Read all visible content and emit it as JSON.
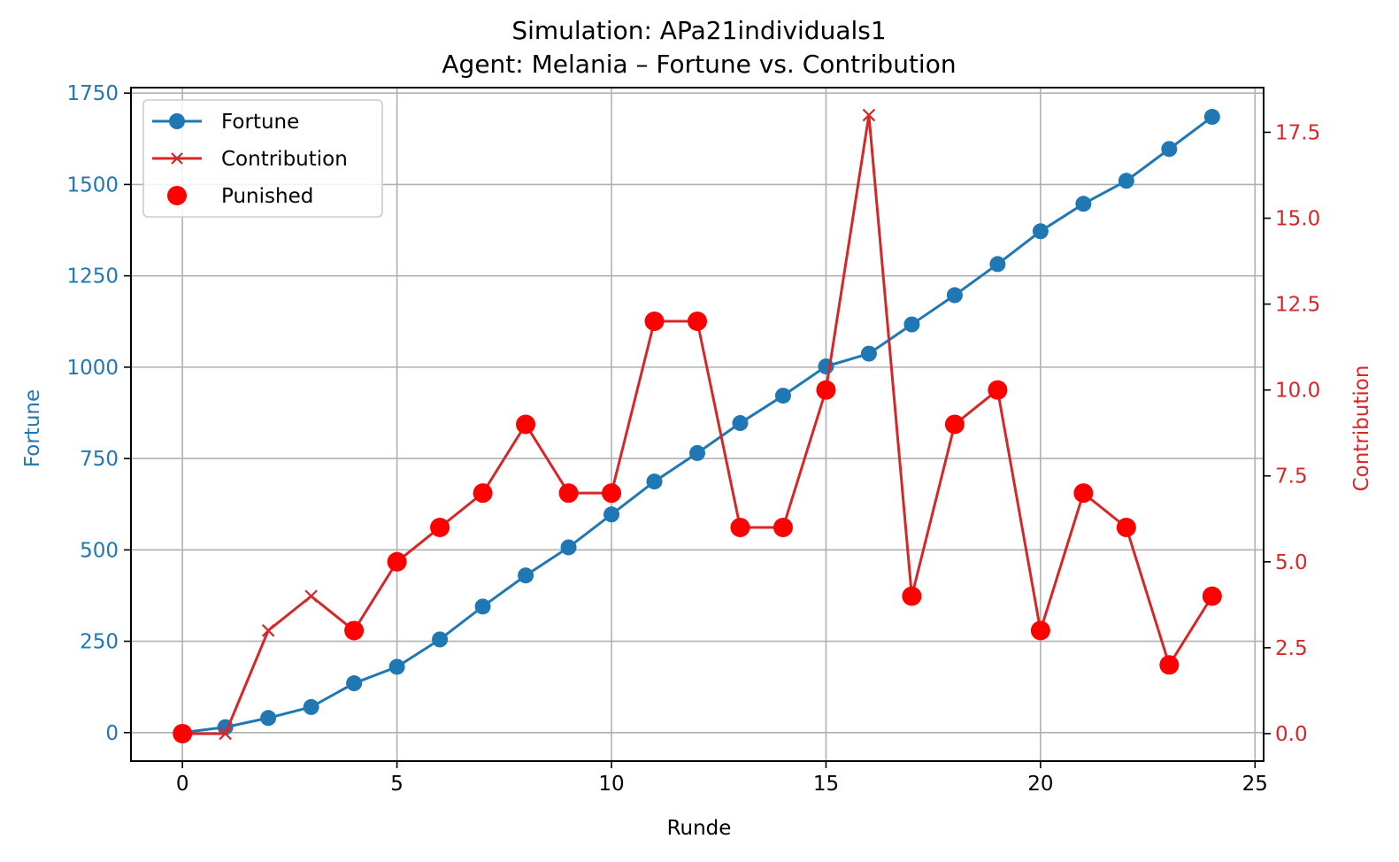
{
  "chart_data": {
    "type": "line",
    "title": "Simulation: APa21individuals1",
    "subtitle": "Agent: Melania – Fortune vs. Contribution",
    "xlabel": "Runde",
    "ylabel_left": "Fortune",
    "ylabel_right": "Contribution",
    "xlim": [
      -1.2,
      25.2
    ],
    "ylim_left": [
      -78,
      1765
    ],
    "ylim_right": [
      -0.8,
      18.8
    ],
    "x_ticks": [
      0,
      5,
      10,
      15,
      20,
      25
    ],
    "y_left_ticks": [
      0,
      250,
      500,
      750,
      1000,
      1250,
      1500,
      1750
    ],
    "y_right_ticks": [
      0.0,
      2.5,
      5.0,
      7.5,
      10.0,
      12.5,
      15.0,
      17.5
    ],
    "y_right_tick_labels": [
      "0.0",
      "2.5",
      "5.0",
      "7.5",
      "10.0",
      "12.5",
      "15.0",
      "17.5"
    ],
    "grid": true,
    "legend_position": "top-left",
    "legend": [
      "Fortune",
      "Contribution",
      "Punished"
    ],
    "colors": {
      "fortune": "#1f77b4",
      "contribution": "#d62728",
      "punished": "#ff0000"
    },
    "x": [
      0,
      1,
      2,
      3,
      4,
      5,
      6,
      7,
      8,
      9,
      10,
      11,
      12,
      13,
      14,
      15,
      16,
      17,
      18,
      19,
      20,
      21,
      22,
      23,
      24
    ],
    "series": [
      {
        "name": "Fortune",
        "axis": "left",
        "values": [
          0,
          15,
          40,
          70,
          135,
          180,
          255,
          345,
          430,
          507,
          597,
          687,
          765,
          847,
          922,
          1002,
          1037,
          1117,
          1197,
          1282,
          1372,
          1447,
          1510,
          1597,
          1685
        ]
      },
      {
        "name": "Contribution",
        "axis": "right",
        "values": [
          0,
          0,
          3,
          4,
          3,
          5,
          6,
          7,
          9,
          7,
          7,
          12,
          12,
          6,
          6,
          10,
          18,
          4,
          9,
          10,
          3,
          7,
          6,
          2,
          4
        ]
      }
    ],
    "punished": {
      "name": "Punished",
      "axis": "right",
      "x": [
        0,
        4,
        5,
        6,
        7,
        8,
        9,
        10,
        11,
        12,
        13,
        14,
        15,
        17,
        18,
        19,
        20,
        21,
        22,
        23,
        24
      ],
      "values": [
        0,
        3,
        5,
        6,
        7,
        9,
        7,
        7,
        12,
        12,
        6,
        6,
        10,
        4,
        9,
        10,
        3,
        7,
        6,
        2,
        4
      ]
    }
  }
}
